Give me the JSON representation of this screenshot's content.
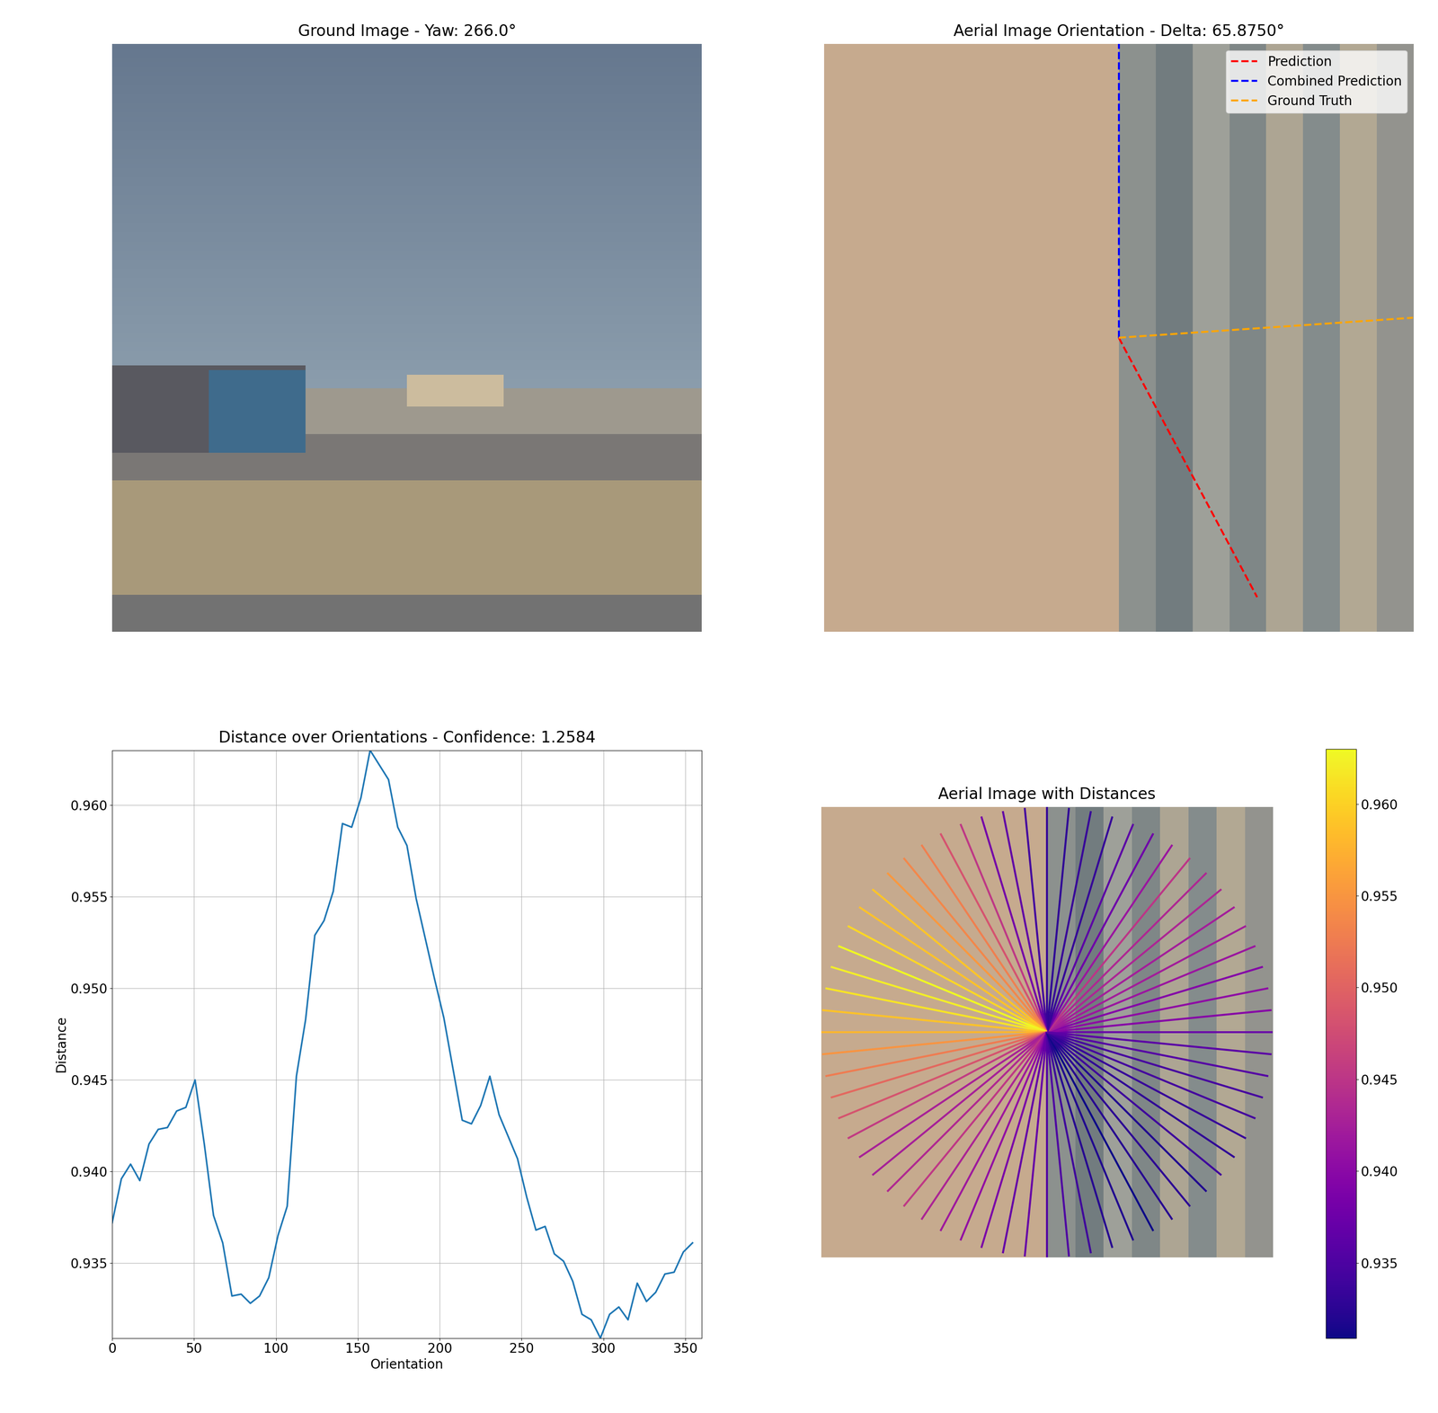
{
  "chart_data": [
    {
      "type": "image",
      "title": "Ground Image - Yaw: 266.0°",
      "tick_labels": false
    },
    {
      "type": "orientation_lines",
      "title": "Aerial Image Orientation - Delta: 65.8750°",
      "tick_labels": false,
      "legend": "upper right",
      "series": [
        {
          "name": "Prediction",
          "color": "red",
          "line_style": "dashed",
          "values": [
            152.0
          ]
        },
        {
          "name": "Combined Prediction",
          "color": "blue",
          "line_style": "dashed",
          "values": [
            0.0
          ]
        },
        {
          "name": "Ground Truth",
          "color": "orange",
          "line_style": "dashed",
          "values": [
            86.1
          ]
        }
      ]
    },
    {
      "type": "line",
      "title": "Distance over Orientations - Confidence: 1.2584",
      "x_label": "Orientation",
      "y_label": "Distance",
      "color": "#1f77b4",
      "grid": true,
      "x": [
        0,
        5.625,
        11.25,
        16.875,
        22.5,
        28.125,
        33.75,
        39.375,
        45,
        50.625,
        56.25,
        61.875,
        67.5,
        73.125,
        78.75,
        84.375,
        90,
        95.625,
        101.25,
        106.875,
        112.5,
        118.125,
        123.75,
        129.375,
        135,
        140.625,
        146.25,
        151.875,
        157.5,
        163.125,
        168.75,
        174.375,
        180,
        185.625,
        191.25,
        196.875,
        202.5,
        208.125,
        213.75,
        219.375,
        225,
        230.625,
        236.25,
        241.875,
        247.5,
        253.125,
        258.75,
        264.375,
        270,
        275.625,
        281.25,
        286.875,
        292.5,
        298.125,
        303.75,
        309.375,
        315,
        320.625,
        326.25,
        331.875,
        337.5,
        343.125,
        348.75,
        354.375
      ],
      "values": [
        0.9372,
        0.9396,
        0.9404,
        0.9395,
        0.9415,
        0.9423,
        0.9424,
        0.9433,
        0.9435,
        0.945,
        0.9415,
        0.9376,
        0.9361,
        0.9332,
        0.9333,
        0.9328,
        0.9332,
        0.9342,
        0.9365,
        0.9381,
        0.9452,
        0.9483,
        0.9529,
        0.9537,
        0.9553,
        0.959,
        0.9588,
        0.9604,
        0.963,
        0.9622,
        0.9614,
        0.9588,
        0.9578,
        0.9549,
        0.9527,
        0.9505,
        0.9484,
        0.9456,
        0.9428,
        0.9426,
        0.9436,
        0.9452,
        0.9431,
        0.9419,
        0.9407,
        0.9386,
        0.9368,
        0.937,
        0.9355,
        0.9351,
        0.934,
        0.9322,
        0.9319,
        0.9309,
        0.9322,
        0.9326,
        0.9319,
        0.9339,
        0.9329,
        0.9334,
        0.9344,
        0.9345,
        0.9356,
        0.9361
      ],
      "xlim": [
        0,
        360
      ],
      "ylim": [
        0.9309,
        0.963
      ],
      "xticks": [
        0,
        50,
        100,
        150,
        200,
        250,
        300,
        350
      ],
      "yticks": [
        0.935,
        {
          "value": 0.94,
          "label": "0.940"
        },
        0.945,
        {
          "value": 0.95,
          "label": "0.950"
        },
        0.955,
        {
          "value": 0.96,
          "label": "0.960"
        }
      ]
    },
    {
      "type": "radial_lines",
      "title": "Aerial Image with Distances",
      "tick_labels": false,
      "x": [
        0,
        5.625,
        11.25,
        16.875,
        22.5,
        28.125,
        33.75,
        39.375,
        45,
        50.625,
        56.25,
        61.875,
        67.5,
        73.125,
        78.75,
        84.375,
        90,
        95.625,
        101.25,
        106.875,
        112.5,
        118.125,
        123.75,
        129.375,
        135,
        140.625,
        146.25,
        151.875,
        157.5,
        163.125,
        168.75,
        174.375,
        180,
        185.625,
        191.25,
        196.875,
        202.5,
        208.125,
        213.75,
        219.375,
        225,
        230.625,
        236.25,
        241.875,
        247.5,
        253.125,
        258.75,
        264.375,
        270,
        275.625,
        281.25,
        286.875,
        292.5,
        298.125,
        303.75,
        309.375,
        315,
        320.625,
        326.25,
        331.875,
        337.5,
        343.125,
        348.75,
        354.375
      ],
      "values": [
        0.9372,
        0.9396,
        0.9404,
        0.9395,
        0.9415,
        0.9423,
        0.9424,
        0.9433,
        0.9435,
        0.945,
        0.9415,
        0.9376,
        0.9361,
        0.9332,
        0.9333,
        0.9328,
        0.9332,
        0.9342,
        0.9365,
        0.9381,
        0.9452,
        0.9483,
        0.9529,
        0.9537,
        0.9553,
        0.959,
        0.9588,
        0.9604,
        0.963,
        0.9622,
        0.9614,
        0.9588,
        0.9578,
        0.9549,
        0.9527,
        0.9505,
        0.9484,
        0.9456,
        0.9428,
        0.9426,
        0.9436,
        0.9452,
        0.9431,
        0.9419,
        0.9407,
        0.9386,
        0.9368,
        0.937,
        0.9355,
        0.9351,
        0.934,
        0.9322,
        0.9319,
        0.9309,
        0.9322,
        0.9326,
        0.9319,
        0.9339,
        0.9329,
        0.9334,
        0.9344,
        0.9345,
        0.9356,
        0.9361
      ],
      "colorbar_range": [
        0.9309,
        0.963
      ],
      "colorbar_ticks": [
        0.935,
        {
          "value": 0.94,
          "label": "0.940"
        },
        0.945,
        {
          "value": 0.95,
          "label": "0.950"
        },
        0.955,
        {
          "value": 0.96,
          "label": "0.960"
        }
      ]
    }
  ]
}
